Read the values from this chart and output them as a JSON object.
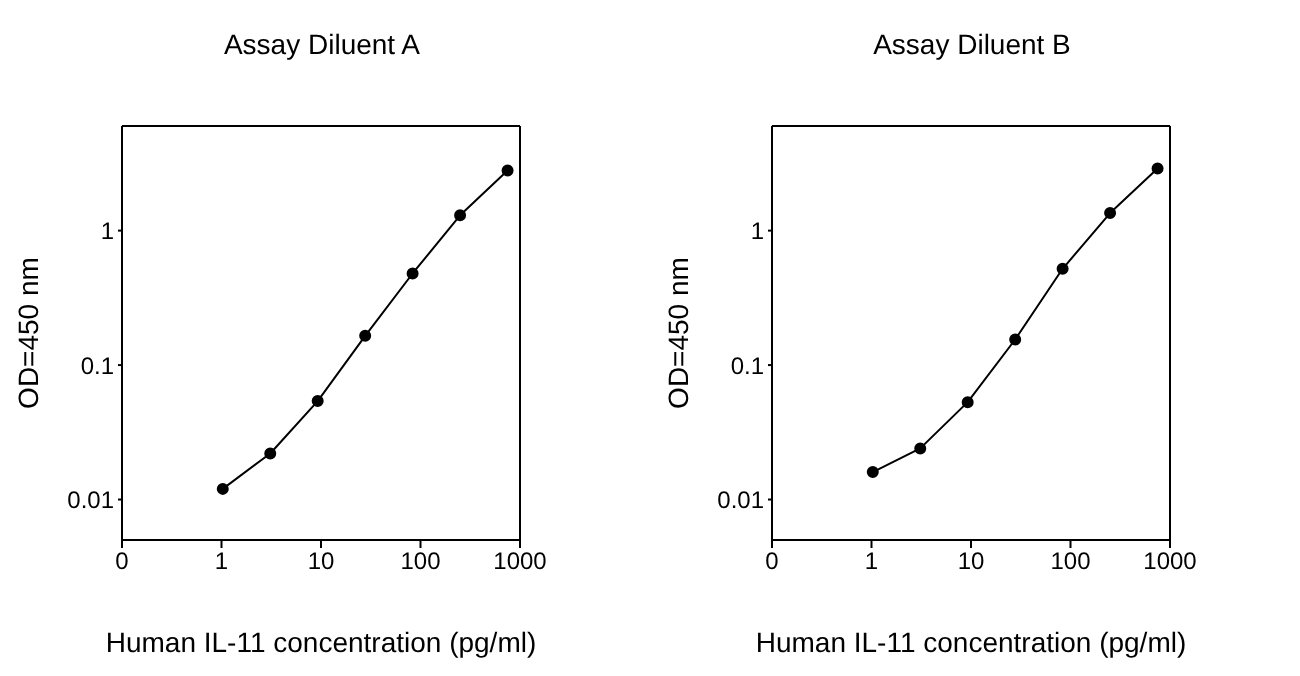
{
  "chart_data": [
    {
      "type": "line",
      "title": "Assay Diluent A",
      "xlabel": "Human IL-11 concentration (pg/ml)",
      "ylabel": "OD=450 nm",
      "log": "xy",
      "marker": "circle",
      "line_style": "solid",
      "grid": false,
      "x": [
        1.03,
        3.09,
        9.26,
        27.8,
        83.3,
        250,
        750
      ],
      "series": [
        {
          "color": "#000000",
          "values": [
            0.012,
            0.022,
            0.054,
            0.165,
            0.48,
            1.3,
            2.8
          ]
        }
      ],
      "xlim": [
        0.1,
        1000
      ],
      "xticks": [
        {
          "value": 0.1,
          "label": "0"
        },
        1,
        10,
        100,
        1000
      ],
      "ylim": [
        0.005,
        6
      ],
      "yticks": [
        0.01,
        0.1,
        1
      ]
    },
    {
      "type": "line",
      "title": "Assay Diluent B",
      "xlabel": "Human IL-11 concentration (pg/ml)",
      "ylabel": "OD=450 nm",
      "log": "xy",
      "marker": "circle",
      "line_style": "solid",
      "grid": false,
      "x": [
        1.03,
        3.09,
        9.26,
        27.8,
        83.3,
        250,
        750
      ],
      "series": [
        {
          "color": "#000000",
          "values": [
            0.016,
            0.024,
            0.053,
            0.155,
            0.52,
            1.35,
            2.9
          ]
        }
      ],
      "xlim": [
        0.1,
        1000
      ],
      "xticks": [
        {
          "value": 0.1,
          "label": "0"
        },
        1,
        10,
        100,
        1000
      ],
      "ylim": [
        0.005,
        6
      ],
      "yticks": [
        0.01,
        0.1,
        1
      ]
    }
  ]
}
